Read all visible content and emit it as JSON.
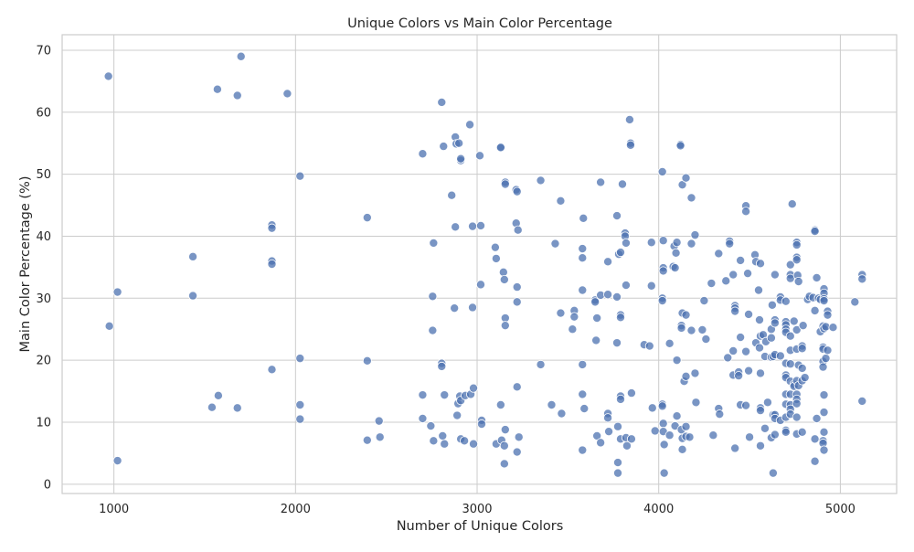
{
  "chart_data": {
    "type": "scatter",
    "title": "Unique Colors vs Main Color Percentage",
    "xlabel": "Number of Unique Colors",
    "ylabel": "Main Color Percentage (%)",
    "xlim": [
      715,
      5310
    ],
    "ylim": [
      -1.5,
      72.5
    ],
    "x_ticks": [
      1000,
      2000,
      3000,
      4000,
      5000
    ],
    "y_ticks": [
      0,
      10,
      20,
      30,
      40,
      50,
      60,
      70
    ],
    "grid": true,
    "point_color": "#4c72b0",
    "points": [
      [
        970,
        65.8
      ],
      [
        975,
        25.5
      ],
      [
        1020,
        31.0
      ],
      [
        1020,
        3.8
      ],
      [
        1435,
        36.7
      ],
      [
        1435,
        30.4
      ],
      [
        1540,
        12.4
      ],
      [
        1570,
        63.7
      ],
      [
        1575,
        14.3
      ],
      [
        1680,
        62.7
      ],
      [
        1680,
        12.3
      ],
      [
        1700,
        69.0
      ],
      [
        1870,
        41.8
      ],
      [
        1870,
        41.3
      ],
      [
        1870,
        36.0
      ],
      [
        1870,
        35.5
      ],
      [
        1870,
        18.5
      ],
      [
        1955,
        63.0
      ],
      [
        2025,
        49.7
      ],
      [
        2025,
        20.3
      ],
      [
        2025,
        12.8
      ],
      [
        2025,
        10.5
      ],
      [
        2395,
        43.0
      ],
      [
        2395,
        19.9
      ],
      [
        2395,
        7.1
      ],
      [
        2460,
        10.2
      ],
      [
        2465,
        7.6
      ],
      [
        2700,
        53.3
      ],
      [
        2700,
        14.4
      ],
      [
        2700,
        10.6
      ],
      [
        2745,
        9.4
      ],
      [
        2755,
        30.3
      ],
      [
        2755,
        24.8
      ],
      [
        2760,
        38.9
      ],
      [
        2760,
        7.0
      ],
      [
        2805,
        61.6
      ],
      [
        2805,
        19.5
      ],
      [
        2805,
        19.0
      ],
      [
        2810,
        7.8
      ],
      [
        2815,
        54.5
      ],
      [
        2820,
        14.4
      ],
      [
        2820,
        6.5
      ],
      [
        2860,
        46.6
      ],
      [
        2875,
        28.4
      ],
      [
        2880,
        41.5
      ],
      [
        2880,
        56.0
      ],
      [
        2885,
        54.9
      ],
      [
        2890,
        11.1
      ],
      [
        2895,
        13.0
      ],
      [
        2900,
        55.0
      ],
      [
        2905,
        14.2
      ],
      [
        2910,
        52.2
      ],
      [
        2910,
        52.5
      ],
      [
        2910,
        13.5
      ],
      [
        2910,
        7.3
      ],
      [
        2930,
        7.0
      ],
      [
        2935,
        14.3
      ],
      [
        2960,
        58.0
      ],
      [
        2965,
        14.5
      ],
      [
        2975,
        28.5
      ],
      [
        2975,
        41.6
      ],
      [
        2980,
        15.5
      ],
      [
        2980,
        6.5
      ],
      [
        3015,
        53.0
      ],
      [
        3020,
        41.7
      ],
      [
        3020,
        32.2
      ],
      [
        3025,
        10.3
      ],
      [
        3025,
        9.7
      ],
      [
        3100,
        38.2
      ],
      [
        3105,
        36.4
      ],
      [
        3105,
        6.5
      ],
      [
        3130,
        54.4
      ],
      [
        3130,
        54.3
      ],
      [
        3130,
        12.8
      ],
      [
        3135,
        7.1
      ],
      [
        3145,
        34.2
      ],
      [
        3150,
        33.0
      ],
      [
        3150,
        6.2
      ],
      [
        3150,
        3.3
      ],
      [
        3155,
        48.7
      ],
      [
        3155,
        48.4
      ],
      [
        3155,
        26.8
      ],
      [
        3155,
        25.6
      ],
      [
        3155,
        8.8
      ],
      [
        3215,
        47.5
      ],
      [
        3215,
        42.1
      ],
      [
        3220,
        47.2
      ],
      [
        3220,
        31.8
      ],
      [
        3220,
        29.4
      ],
      [
        3220,
        15.7
      ],
      [
        3220,
        5.2
      ],
      [
        3225,
        41.0
      ],
      [
        3230,
        7.6
      ],
      [
        3350,
        49.0
      ],
      [
        3350,
        19.3
      ],
      [
        3410,
        12.8
      ],
      [
        3430,
        38.8
      ],
      [
        3460,
        45.7
      ],
      [
        3460,
        27.6
      ],
      [
        3465,
        11.4
      ],
      [
        3525,
        25.0
      ],
      [
        3535,
        28.0
      ],
      [
        3535,
        27.0
      ],
      [
        3580,
        38.0
      ],
      [
        3580,
        36.5
      ],
      [
        3580,
        31.3
      ],
      [
        3580,
        5.5
      ],
      [
        3580,
        19.3
      ],
      [
        3580,
        14.5
      ],
      [
        3585,
        42.9
      ],
      [
        3590,
        12.2
      ],
      [
        3650,
        29.7
      ],
      [
        3650,
        29.4
      ],
      [
        3655,
        23.2
      ],
      [
        3660,
        26.8
      ],
      [
        3660,
        7.8
      ],
      [
        3680,
        48.7
      ],
      [
        3680,
        30.5
      ],
      [
        3680,
        6.7
      ],
      [
        3720,
        35.9
      ],
      [
        3720,
        30.6
      ],
      [
        3720,
        11.4
      ],
      [
        3720,
        10.7
      ],
      [
        3725,
        8.5
      ],
      [
        3770,
        43.3
      ],
      [
        3770,
        30.2
      ],
      [
        3770,
        22.8
      ],
      [
        3775,
        9.3
      ],
      [
        3775,
        3.5
      ],
      [
        3775,
        1.8
      ],
      [
        3780,
        37.1
      ],
      [
        3790,
        37.4
      ],
      [
        3790,
        27.3
      ],
      [
        3790,
        26.9
      ],
      [
        3790,
        14.2
      ],
      [
        3790,
        13.7
      ],
      [
        3790,
        7.3
      ],
      [
        3800,
        48.4
      ],
      [
        3815,
        40.5
      ],
      [
        3815,
        40.0
      ],
      [
        3820,
        38.9
      ],
      [
        3820,
        32.1
      ],
      [
        3820,
        7.5
      ],
      [
        3825,
        6.2
      ],
      [
        3840,
        58.8
      ],
      [
        3845,
        55.0
      ],
      [
        3845,
        54.7
      ],
      [
        3850,
        14.7
      ],
      [
        3850,
        7.3
      ],
      [
        3920,
        22.5
      ],
      [
        3950,
        22.3
      ],
      [
        3960,
        39.0
      ],
      [
        3960,
        32.0
      ],
      [
        3965,
        12.3
      ],
      [
        3980,
        8.6
      ],
      [
        4020,
        50.4
      ],
      [
        4020,
        30.0
      ],
      [
        4020,
        29.6
      ],
      [
        4020,
        12.9
      ],
      [
        4020,
        12.6
      ],
      [
        4025,
        39.3
      ],
      [
        4025,
        34.9
      ],
      [
        4025,
        34.4
      ],
      [
        4025,
        9.8
      ],
      [
        4025,
        8.5
      ],
      [
        4030,
        6.4
      ],
      [
        4030,
        1.8
      ],
      [
        4060,
        22.7
      ],
      [
        4060,
        7.9
      ],
      [
        4080,
        35.1
      ],
      [
        4085,
        38.4
      ],
      [
        4090,
        34.9
      ],
      [
        4090,
        9.4
      ],
      [
        4095,
        37.3
      ],
      [
        4100,
        39.0
      ],
      [
        4100,
        20.0
      ],
      [
        4100,
        11.0
      ],
      [
        4120,
        54.8
      ],
      [
        4120,
        54.6
      ],
      [
        4125,
        25.6
      ],
      [
        4125,
        25.2
      ],
      [
        4125,
        8.8
      ],
      [
        4130,
        48.3
      ],
      [
        4130,
        27.6
      ],
      [
        4130,
        7.4
      ],
      [
        4130,
        5.6
      ],
      [
        4140,
        16.6
      ],
      [
        4150,
        49.4
      ],
      [
        4150,
        27.3
      ],
      [
        4150,
        17.4
      ],
      [
        4150,
        9.3
      ],
      [
        4150,
        7.7
      ],
      [
        4170,
        7.6
      ],
      [
        4180,
        46.2
      ],
      [
        4180,
        38.8
      ],
      [
        4180,
        24.8
      ],
      [
        4200,
        40.2
      ],
      [
        4200,
        17.9
      ],
      [
        4205,
        13.2
      ],
      [
        4240,
        24.9
      ],
      [
        4250,
        29.6
      ],
      [
        4260,
        23.4
      ],
      [
        4290,
        32.4
      ],
      [
        4300,
        7.9
      ],
      [
        4330,
        37.2
      ],
      [
        4330,
        12.2
      ],
      [
        4335,
        11.3
      ],
      [
        4370,
        32.8
      ],
      [
        4380,
        20.4
      ],
      [
        4390,
        39.2
      ],
      [
        4390,
        38.8
      ],
      [
        4410,
        33.8
      ],
      [
        4410,
        21.5
      ],
      [
        4410,
        17.6
      ],
      [
        4420,
        28.8
      ],
      [
        4420,
        28.4
      ],
      [
        4420,
        27.9
      ],
      [
        4420,
        5.8
      ],
      [
        4440,
        18.1
      ],
      [
        4440,
        17.5
      ],
      [
        4450,
        36.1
      ],
      [
        4450,
        23.7
      ],
      [
        4450,
        12.8
      ],
      [
        4480,
        44.9
      ],
      [
        4480,
        44.0
      ],
      [
        4480,
        21.4
      ],
      [
        4480,
        12.7
      ],
      [
        4490,
        34.0
      ],
      [
        4495,
        27.4
      ],
      [
        4495,
        18.3
      ],
      [
        4500,
        7.6
      ],
      [
        4530,
        37.0
      ],
      [
        4535,
        35.9
      ],
      [
        4535,
        22.8
      ],
      [
        4550,
        31.3
      ],
      [
        4555,
        26.5
      ],
      [
        4555,
        22.0
      ],
      [
        4560,
        35.6
      ],
      [
        4560,
        23.9
      ],
      [
        4560,
        17.9
      ],
      [
        4560,
        12.3
      ],
      [
        4560,
        11.9
      ],
      [
        4560,
        6.2
      ],
      [
        4575,
        24.1
      ],
      [
        4585,
        20.6
      ],
      [
        4585,
        9.0
      ],
      [
        4590,
        23.0
      ],
      [
        4600,
        13.2
      ],
      [
        4620,
        25.0
      ],
      [
        4620,
        23.6
      ],
      [
        4620,
        20.5
      ],
      [
        4620,
        7.5
      ],
      [
        4625,
        28.9
      ],
      [
        4630,
        20.6
      ],
      [
        4630,
        11.2
      ],
      [
        4630,
        1.8
      ],
      [
        4640,
        33.8
      ],
      [
        4640,
        26.5
      ],
      [
        4640,
        26.0
      ],
      [
        4640,
        20.9
      ],
      [
        4640,
        11.2
      ],
      [
        4640,
        10.6
      ],
      [
        4640,
        8.0
      ],
      [
        4670,
        30.2
      ],
      [
        4670,
        29.7
      ],
      [
        4670,
        20.7
      ],
      [
        4670,
        10.3
      ],
      [
        4700,
        29.5
      ],
      [
        4700,
        26.2
      ],
      [
        4700,
        25.7
      ],
      [
        4700,
        25.0
      ],
      [
        4700,
        24.5
      ],
      [
        4700,
        19.5
      ],
      [
        4700,
        17.6
      ],
      [
        4700,
        17.2
      ],
      [
        4700,
        14.5
      ],
      [
        4700,
        12.9
      ],
      [
        4700,
        10.8
      ],
      [
        4700,
        8.7
      ],
      [
        4700,
        8.4
      ],
      [
        4725,
        35.4
      ],
      [
        4725,
        33.8
      ],
      [
        4725,
        33.2
      ],
      [
        4725,
        23.9
      ],
      [
        4725,
        21.6
      ],
      [
        4725,
        19.4
      ],
      [
        4725,
        16.6
      ],
      [
        4725,
        14.5
      ],
      [
        4725,
        12.8
      ],
      [
        4725,
        12.1
      ],
      [
        4725,
        11.3
      ],
      [
        4735,
        45.2
      ],
      [
        4745,
        26.3
      ],
      [
        4745,
        16.1
      ],
      [
        4745,
        15.8
      ],
      [
        4760,
        39.0
      ],
      [
        4760,
        38.6
      ],
      [
        4760,
        36.6
      ],
      [
        4760,
        36.2
      ],
      [
        4760,
        24.9
      ],
      [
        4760,
        21.8
      ],
      [
        4760,
        16.7
      ],
      [
        4760,
        14.5
      ],
      [
        4760,
        13.7
      ],
      [
        4760,
        13.0
      ],
      [
        4760,
        10.8
      ],
      [
        4760,
        8.1
      ],
      [
        4765,
        33.7
      ],
      [
        4770,
        32.7
      ],
      [
        4770,
        19.2
      ],
      [
        4770,
        15.9
      ],
      [
        4790,
        22.3
      ],
      [
        4790,
        21.9
      ],
      [
        4790,
        18.7
      ],
      [
        4790,
        16.7
      ],
      [
        4790,
        8.4
      ],
      [
        4795,
        25.6
      ],
      [
        4805,
        17.2
      ],
      [
        4820,
        29.8
      ],
      [
        4830,
        30.3
      ],
      [
        4850,
        30.1
      ],
      [
        4860,
        41.0
      ],
      [
        4860,
        40.8
      ],
      [
        4860,
        28.0
      ],
      [
        4860,
        7.3
      ],
      [
        4860,
        3.7
      ],
      [
        4870,
        33.3
      ],
      [
        4870,
        10.6
      ],
      [
        4880,
        30.0
      ],
      [
        4890,
        29.8
      ],
      [
        4890,
        24.6
      ],
      [
        4905,
        25.5
      ],
      [
        4905,
        22.1
      ],
      [
        4905,
        21.8
      ],
      [
        4905,
        19.8
      ],
      [
        4905,
        18.9
      ],
      [
        4905,
        7.0
      ],
      [
        4905,
        6.6
      ],
      [
        4910,
        31.5
      ],
      [
        4910,
        30.8
      ],
      [
        4910,
        29.9
      ],
      [
        4910,
        29.6
      ],
      [
        4910,
        25.1
      ],
      [
        4910,
        14.4
      ],
      [
        4910,
        11.6
      ],
      [
        4910,
        8.4
      ],
      [
        4910,
        5.5
      ],
      [
        4920,
        25.4
      ],
      [
        4920,
        20.3
      ],
      [
        4930,
        27.9
      ],
      [
        4930,
        27.3
      ],
      [
        4930,
        21.6
      ],
      [
        4960,
        25.3
      ],
      [
        5080,
        29.4
      ],
      [
        5120,
        33.8
      ],
      [
        5120,
        33.1
      ],
      [
        5120,
        13.4
      ]
    ]
  }
}
